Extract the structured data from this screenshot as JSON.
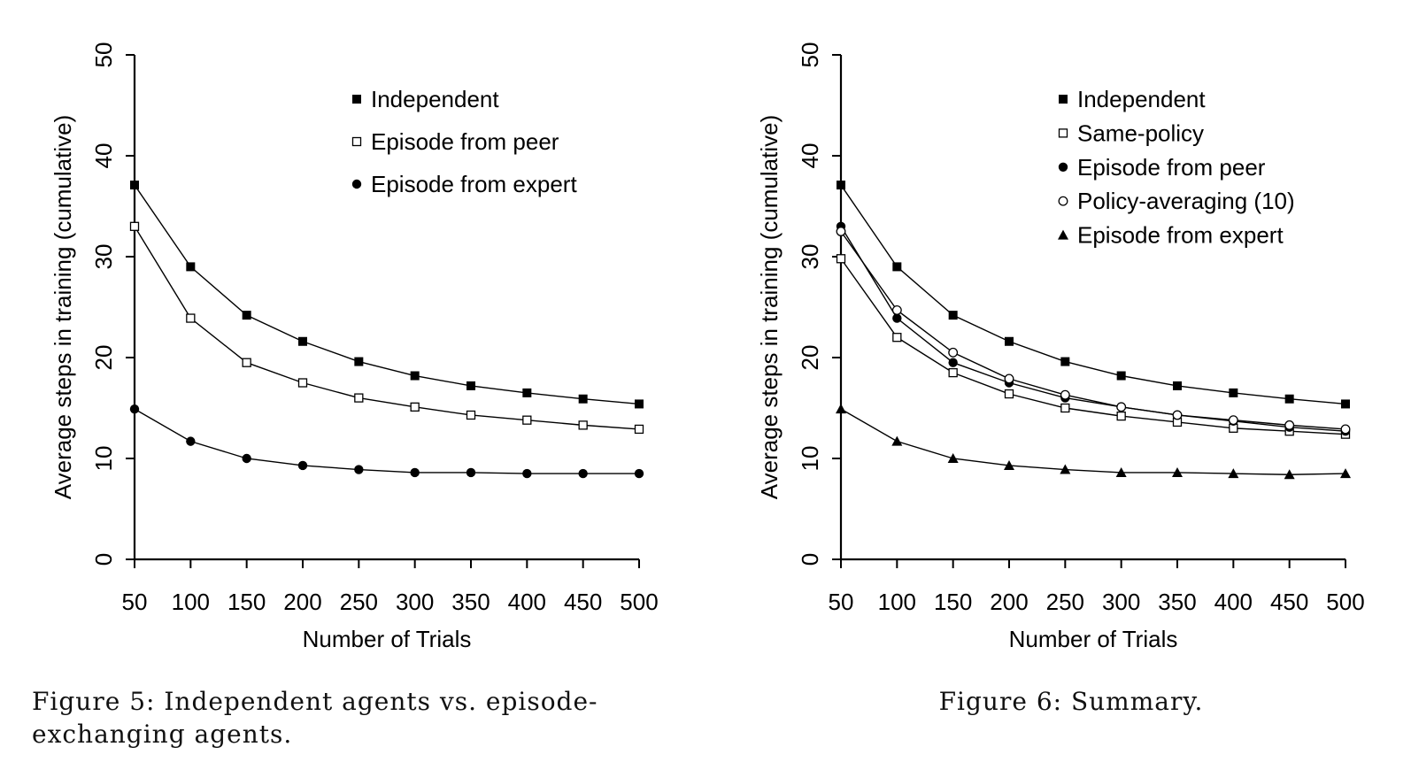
{
  "figures": {
    "left_caption": "Figure 5: Independent agents vs. episode-exchanging agents.",
    "right_caption": "Figure 6: Summary."
  },
  "chart_data": [
    {
      "type": "line",
      "title": "",
      "xlabel": "Number of Trials",
      "ylabel": "Average steps in training (cumulative)",
      "x": [
        50,
        100,
        150,
        200,
        250,
        300,
        350,
        400,
        450,
        500
      ],
      "xlim": [
        50,
        500
      ],
      "ylim": [
        0,
        50
      ],
      "yticks": [
        0,
        10,
        20,
        30,
        40,
        50
      ],
      "grid": false,
      "legend_position": "top-right",
      "series": [
        {
          "name": "Independent",
          "marker": "filled-square",
          "values": [
            37.1,
            29.0,
            24.2,
            21.6,
            19.6,
            18.2,
            17.2,
            16.5,
            15.9,
            15.4
          ]
        },
        {
          "name": "Episode from peer",
          "marker": "open-square",
          "values": [
            33.0,
            23.9,
            19.5,
            17.5,
            16.0,
            15.1,
            14.3,
            13.8,
            13.3,
            12.9
          ]
        },
        {
          "name": "Episode from expert",
          "marker": "filled-circle",
          "values": [
            14.9,
            11.7,
            10.0,
            9.3,
            8.9,
            8.6,
            8.6,
            8.5,
            8.5,
            8.5
          ]
        }
      ]
    },
    {
      "type": "line",
      "title": "",
      "xlabel": "Number of Trials",
      "ylabel": "Average steps in training (cumulative)",
      "x": [
        50,
        100,
        150,
        200,
        250,
        300,
        350,
        400,
        450,
        500
      ],
      "xlim": [
        50,
        500
      ],
      "ylim": [
        0,
        50
      ],
      "yticks": [
        0,
        10,
        20,
        30,
        40,
        50
      ],
      "grid": false,
      "legend_position": "top-right",
      "series": [
        {
          "name": "Independent",
          "marker": "filled-square",
          "values": [
            37.1,
            29.0,
            24.2,
            21.6,
            19.6,
            18.2,
            17.2,
            16.5,
            15.9,
            15.4
          ]
        },
        {
          "name": "Same-policy",
          "marker": "open-square",
          "values": [
            29.8,
            22.0,
            18.5,
            16.4,
            15.0,
            14.2,
            13.6,
            13.0,
            12.7,
            12.4
          ]
        },
        {
          "name": "Episode from peer",
          "marker": "filled-circle",
          "values": [
            33.0,
            23.9,
            19.5,
            17.5,
            16.0,
            15.1,
            14.3,
            13.7,
            13.1,
            12.7
          ]
        },
        {
          "name": "Policy-averaging (10)",
          "marker": "open-circle",
          "values": [
            32.5,
            24.7,
            20.5,
            17.9,
            16.3,
            15.1,
            14.3,
            13.8,
            13.3,
            12.9
          ]
        },
        {
          "name": "Episode from expert",
          "marker": "filled-triangle",
          "values": [
            14.9,
            11.7,
            10.0,
            9.3,
            8.9,
            8.6,
            8.6,
            8.5,
            8.4,
            8.5
          ]
        }
      ]
    }
  ]
}
